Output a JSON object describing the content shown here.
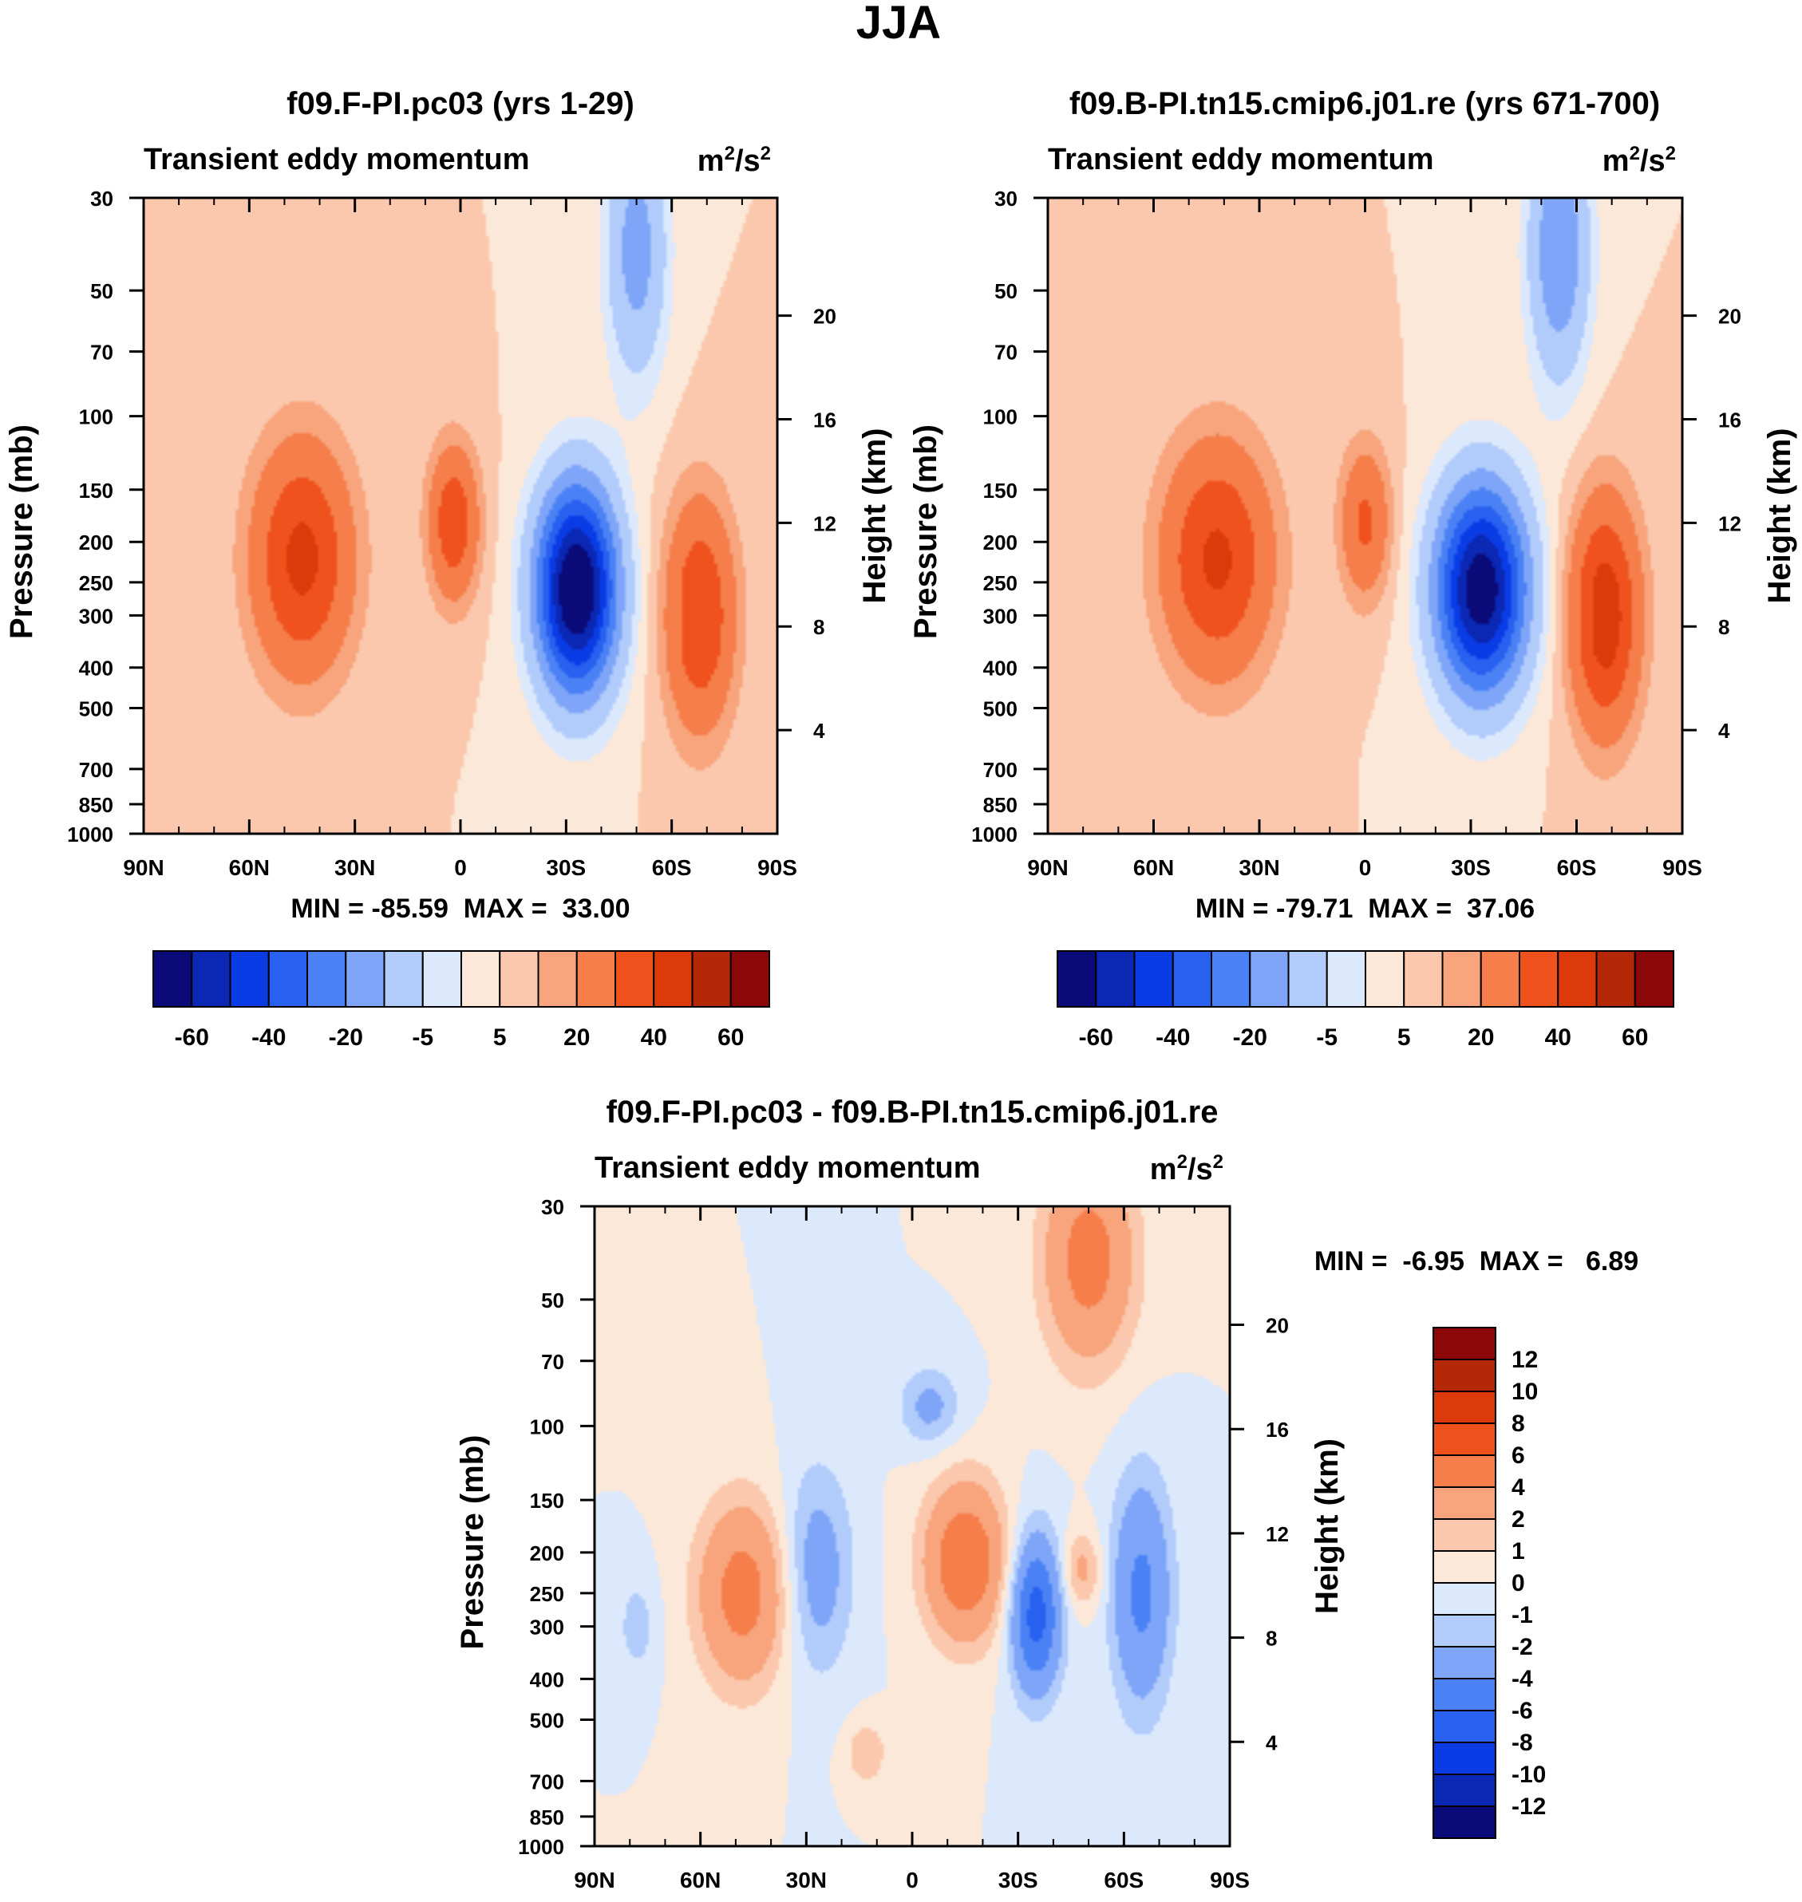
{
  "figure_title": "JJA",
  "chart_data": [
    {
      "type": "heatmap",
      "title": "f09.F-PI.pc03 (yrs 1-29)",
      "left_subtitle": "Transient eddy momentum",
      "units": "m²/s²",
      "units_base": "m",
      "units_sup1": "2",
      "units_mid": "/s",
      "units_sup2": "2",
      "ylabel": "Pressure (mb)",
      "y2label": "Height (km)",
      "x_ticks": [
        "90N",
        "60N",
        "30N",
        "0",
        "30S",
        "60S",
        "90S"
      ],
      "y_ticks": [
        "30",
        "50",
        "70",
        "100",
        "150",
        "200",
        "250",
        "300",
        "400",
        "500",
        "700",
        "850",
        "1000"
      ],
      "y2_ticks": [
        "20",
        "16",
        "12",
        "8",
        "4"
      ],
      "xlim": [
        90,
        -90
      ],
      "ylim": [
        1000,
        30
      ],
      "stats": "MIN = -85.59  MAX =  33.00",
      "min": -85.59,
      "max": 33.0,
      "features": [
        {
          "lat": 45,
          "p": 220,
          "value": 33,
          "dlat": 10,
          "dlogp": 0.45
        },
        {
          "lat": 2,
          "p": 180,
          "value": 28,
          "dlat": 5,
          "dlogp": 0.3
        },
        {
          "lat": -33,
          "p": 260,
          "value": -85,
          "dlat": 8,
          "dlogp": 0.4
        },
        {
          "lat": -68,
          "p": 300,
          "value": 30,
          "dlat": 7,
          "dlogp": 0.45
        },
        {
          "lat": -50,
          "p": 40,
          "value": -25,
          "dlat": 6,
          "dlogp": 0.5
        },
        {
          "lat": -65,
          "p": 300,
          "value": -4,
          "dlat": 3,
          "dlogp": 0.1
        }
      ],
      "colorbar": {
        "labels": [
          "-60",
          "-40",
          "-20",
          "-5",
          "5",
          "20",
          "40",
          "60"
        ],
        "colors": [
          "#0a0a78",
          "#0a28b4",
          "#0a3ce6",
          "#2860f0",
          "#4a82f5",
          "#7ea5f8",
          "#b1cbfb",
          "#dce9fc",
          "#fce8d8",
          "#fbc8ad",
          "#f8a47c",
          "#f57e4a",
          "#f0521e",
          "#dc3a0a",
          "#b42808",
          "#8c0808"
        ]
      }
    },
    {
      "type": "heatmap",
      "title": "f09.B-PI.tn15.cmip6.j01.re (yrs 671-700)",
      "left_subtitle": "Transient eddy momentum",
      "units": "m²/s²",
      "units_base": "m",
      "units_sup1": "2",
      "units_mid": "/s",
      "units_sup2": "2",
      "ylabel": "Pressure (mb)",
      "y2label": "Height (km)",
      "x_ticks": [
        "90N",
        "60N",
        "30N",
        "0",
        "30S",
        "60S",
        "90S"
      ],
      "y_ticks": [
        "30",
        "50",
        "70",
        "100",
        "150",
        "200",
        "250",
        "300",
        "400",
        "500",
        "700",
        "850",
        "1000"
      ],
      "y2_ticks": [
        "20",
        "16",
        "12",
        "8",
        "4"
      ],
      "xlim": [
        90,
        -90
      ],
      "ylim": [
        1000,
        30
      ],
      "stats": "MIN = -79.71  MAX =  37.06",
      "min": -79.71,
      "max": 37.06,
      "features": [
        {
          "lat": 42,
          "p": 220,
          "value": 32,
          "dlat": 11,
          "dlogp": 0.45
        },
        {
          "lat": 0,
          "p": 180,
          "value": 22,
          "dlat": 5,
          "dlogp": 0.3
        },
        {
          "lat": -33,
          "p": 260,
          "value": -79,
          "dlat": 9,
          "dlogp": 0.4
        },
        {
          "lat": -68,
          "p": 300,
          "value": 37,
          "dlat": 7,
          "dlogp": 0.45
        },
        {
          "lat": -55,
          "p": 40,
          "value": -30,
          "dlat": 6,
          "dlogp": 0.5
        },
        {
          "lat": -65,
          "p": 300,
          "value": -4,
          "dlat": 3,
          "dlogp": 0.1
        }
      ],
      "colorbar": {
        "labels": [
          "-60",
          "-40",
          "-20",
          "-5",
          "5",
          "20",
          "40",
          "60"
        ],
        "colors": [
          "#0a0a78",
          "#0a28b4",
          "#0a3ce6",
          "#2860f0",
          "#4a82f5",
          "#7ea5f8",
          "#b1cbfb",
          "#dce9fc",
          "#fce8d8",
          "#fbc8ad",
          "#f8a47c",
          "#f57e4a",
          "#f0521e",
          "#dc3a0a",
          "#b42808",
          "#8c0808"
        ]
      }
    },
    {
      "type": "heatmap",
      "title": "f09.F-PI.pc03 - f09.B-PI.tn15.cmip6.j01.re",
      "left_subtitle": "Transient eddy momentum",
      "units": "m²/s²",
      "units_base": "m",
      "units_sup1": "2",
      "units_mid": "/s",
      "units_sup2": "2",
      "ylabel": "Pressure (mb)",
      "y2label": "Height (km)",
      "x_ticks": [
        "90N",
        "60N",
        "30N",
        "0",
        "30S",
        "60S",
        "90S"
      ],
      "y_ticks": [
        "30",
        "50",
        "70",
        "100",
        "150",
        "200",
        "250",
        "300",
        "400",
        "500",
        "700",
        "850",
        "1000"
      ],
      "y2_ticks": [
        "20",
        "16",
        "12",
        "8",
        "4"
      ],
      "xlim": [
        90,
        -90
      ],
      "ylim": [
        1000,
        30
      ],
      "stats": "MIN =  -6.95  MAX =   6.89",
      "min": -6.95,
      "max": 6.89,
      "features": [
        {
          "lat": 48,
          "p": 250,
          "value": 5,
          "dlat": 9,
          "dlogp": 0.35
        },
        {
          "lat": 27,
          "p": 220,
          "value": -3,
          "dlat": 7,
          "dlogp": 0.4
        },
        {
          "lat": -15,
          "p": 210,
          "value": 6,
          "dlat": 8,
          "dlogp": 0.3
        },
        {
          "lat": -35,
          "p": 280,
          "value": -7,
          "dlat": 5,
          "dlogp": 0.3
        },
        {
          "lat": -50,
          "p": 40,
          "value": 5,
          "dlat": 9,
          "dlogp": 0.4
        },
        {
          "lat": -65,
          "p": 250,
          "value": -4.5,
          "dlat": 6,
          "dlogp": 0.45
        },
        {
          "lat": -48,
          "p": 220,
          "value": 2.5,
          "dlat": 4,
          "dlogp": 0.15
        },
        {
          "lat": -5,
          "p": 90,
          "value": -2.5,
          "dlat": 6,
          "dlogp": 0.15
        },
        {
          "lat": 78,
          "p": 300,
          "value": -1.5,
          "dlat": 4,
          "dlogp": 0.2
        },
        {
          "lat": 13,
          "p": 600,
          "value": 2,
          "dlat": 4,
          "dlogp": 0.12
        }
      ],
      "colorbar": {
        "labels": [
          "12",
          "10",
          "8",
          "6",
          "4",
          "2",
          "1",
          "0",
          "-1",
          "-2",
          "-4",
          "-6",
          "-8",
          "-10",
          "-12"
        ],
        "colors": [
          "#0a0a78",
          "#0a28b4",
          "#0a3ce6",
          "#2860f0",
          "#4a82f5",
          "#7ea5f8",
          "#b1cbfb",
          "#dce9fc",
          "#fce8d8",
          "#fbc8ad",
          "#f8a47c",
          "#f57e4a",
          "#f0521e",
          "#dc3a0a",
          "#b42808",
          "#8c0808"
        ]
      }
    }
  ]
}
